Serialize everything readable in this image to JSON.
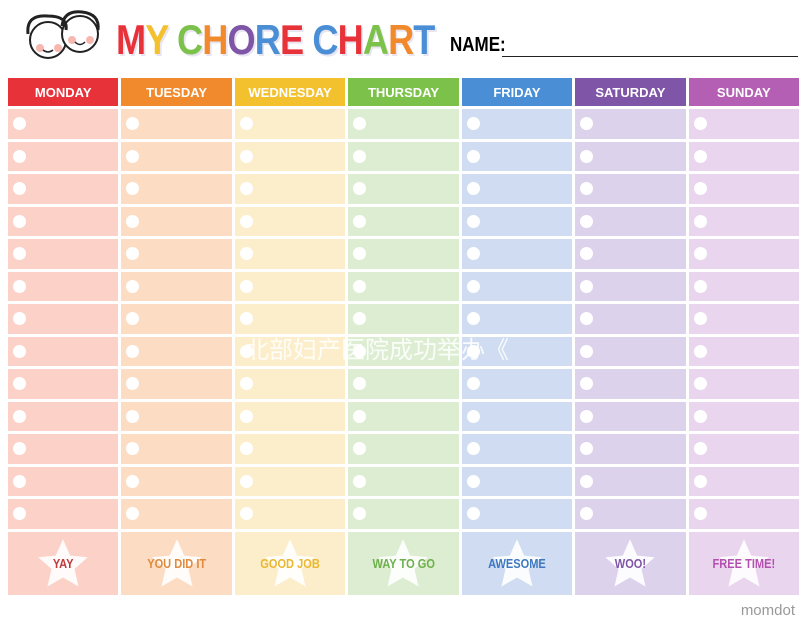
{
  "header": {
    "title_words": [
      "M",
      "Y",
      " ",
      "C",
      "H",
      "O",
      "R",
      "E",
      " ",
      "C",
      "H",
      "A",
      "R",
      "T"
    ],
    "title_colors": [
      "#e8323a",
      "#f3c12e",
      "#fff",
      "#7cc24a",
      "#f08a2c",
      "#7f55a8",
      "#4a8fd6",
      "#e8323a",
      "#fff",
      "#4a8fd6",
      "#e8323a",
      "#7cc24a",
      "#f08a2c",
      "#4a8fd6"
    ],
    "name_label": "NAME:"
  },
  "days": [
    {
      "label": "MONDAY",
      "color": "#e8323a",
      "cell": "#fcd2c8",
      "reward": "YAY",
      "reward_color": "#c0393e"
    },
    {
      "label": "TUESDAY",
      "color": "#f08a2c",
      "cell": "#fddcc4",
      "reward": "YOU DID IT",
      "reward_color": "#e08a3c"
    },
    {
      "label": "WEDNESDAY",
      "color": "#f3c12e",
      "cell": "#fdeecb",
      "reward": "GOOD JOB",
      "reward_color": "#e9b830"
    },
    {
      "label": "THURSDAY",
      "color": "#7cc24a",
      "cell": "#dcedd2",
      "reward": "WAY TO GO",
      "reward_color": "#6cb04a"
    },
    {
      "label": "FRIDAY",
      "color": "#4a8fd6",
      "cell": "#cfdcf1",
      "reward": "AWESOME",
      "reward_color": "#3f78c0"
    },
    {
      "label": "SATURDAY",
      "color": "#7f55a8",
      "cell": "#dcd2ec",
      "reward": "WOO!",
      "reward_color": "#7f55a8"
    },
    {
      "label": "SUNDAY",
      "color": "#b45fb4",
      "cell": "#ead5ee",
      "reward": "FREE TIME!",
      "reward_color": "#b450b0"
    }
  ],
  "rows_per_day": 13,
  "watermark": "北部妇产医院成功举办《",
  "brand": "momdot"
}
